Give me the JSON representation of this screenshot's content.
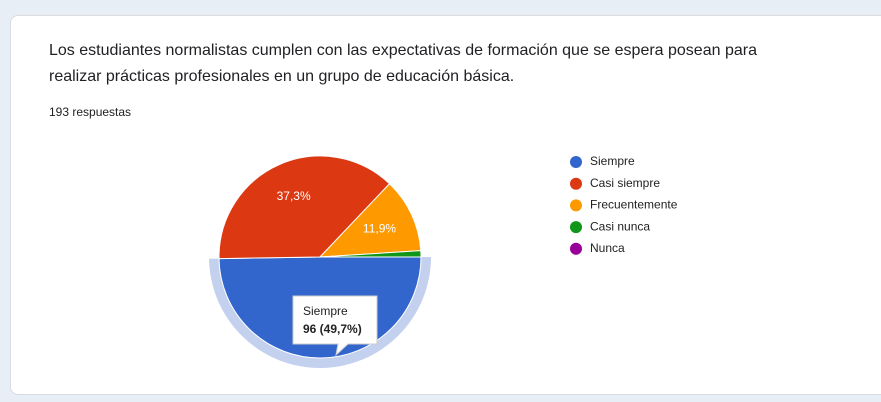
{
  "chart_data": {
    "type": "pie",
    "title": "Los estudiantes normalistas cumplen con las expectativas de formación que se espera posean para realizar prácticas profesionales en un grupo de educación básica.",
    "subtitle": "193 respuestas",
    "categories": [
      "Siempre",
      "Casi siempre",
      "Frecuentemente",
      "Casi nunca",
      "Nunca"
    ],
    "values": [
      49.7,
      37.3,
      11.9,
      1.0,
      0
    ],
    "value_labels": [
      "96 (49,7%)",
      "37,3%",
      "11,9%",
      null,
      null
    ],
    "colors": [
      "#3366cc",
      "#dc3912",
      "#ff9900",
      "#109618",
      "#990099"
    ],
    "highlight": 0,
    "legend": "right"
  }
}
